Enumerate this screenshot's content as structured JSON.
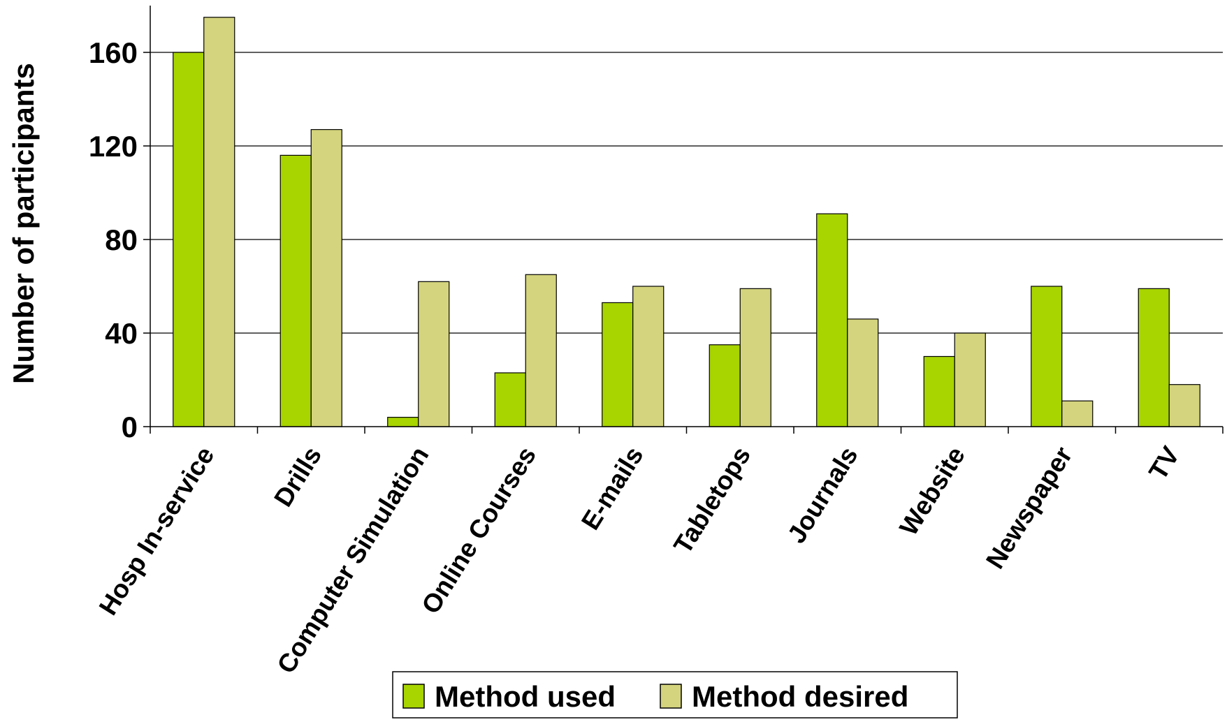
{
  "chart_data": {
    "type": "bar",
    "title": "",
    "xlabel": "",
    "ylabel": "Number of participants",
    "categories": [
      "Hosp In-service",
      "Drills",
      "Computer Simulation",
      "Online Courses",
      "E-mails",
      "Tabletops",
      "Journals",
      "Website",
      "Newspaper",
      "TV"
    ],
    "series": [
      {
        "name": "Method used",
        "color": "#a8d400",
        "values": [
          160,
          116,
          4,
          23,
          53,
          35,
          91,
          30,
          60,
          59
        ]
      },
      {
        "name": "Method desired",
        "color": "#d4d47e",
        "values": [
          175,
          127,
          62,
          65,
          60,
          59,
          46,
          40,
          11,
          18
        ]
      }
    ],
    "ylim": [
      0,
      180
    ],
    "yticks": [
      0,
      40,
      80,
      120,
      160
    ],
    "grid": true,
    "legend": "bottom"
  }
}
